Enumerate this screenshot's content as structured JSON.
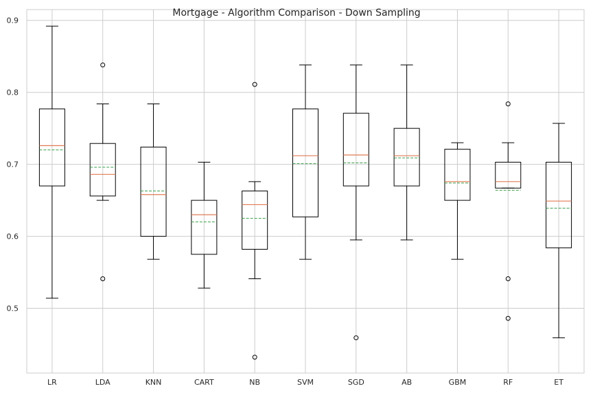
{
  "chart_data": {
    "type": "box",
    "title": "Mortgage - Algorithm Comparison - Down Sampling",
    "xlabel": "",
    "ylabel": "",
    "ylim": [
      0.41,
      0.915
    ],
    "yticks": [
      0.5,
      0.6,
      0.7,
      0.8,
      0.9
    ],
    "ytick_labels": [
      "0.5",
      "0.6",
      "0.7",
      "0.8",
      "0.9"
    ],
    "grid": true,
    "categories": [
      "LR",
      "LDA",
      "KNN",
      "CART",
      "NB",
      "SVM",
      "SGD",
      "AB",
      "GBM",
      "RF",
      "ET"
    ],
    "boxes": [
      {
        "label": "LR",
        "whislo": 0.514,
        "q1": 0.67,
        "med": 0.726,
        "mean": 0.72,
        "q3": 0.777,
        "whishi": 0.892,
        "fliers": []
      },
      {
        "label": "LDA",
        "whislo": 0.65,
        "q1": 0.656,
        "med": 0.686,
        "mean": 0.696,
        "q3": 0.729,
        "whishi": 0.784,
        "fliers": [
          0.838,
          0.541
        ]
      },
      {
        "label": "KNN",
        "whislo": 0.568,
        "q1": 0.6,
        "med": 0.658,
        "mean": 0.663,
        "q3": 0.724,
        "whishi": 0.784,
        "fliers": []
      },
      {
        "label": "CART",
        "whislo": 0.528,
        "q1": 0.575,
        "med": 0.63,
        "mean": 0.62,
        "q3": 0.65,
        "whishi": 0.703,
        "fliers": []
      },
      {
        "label": "NB",
        "whislo": 0.541,
        "q1": 0.582,
        "med": 0.644,
        "mean": 0.625,
        "q3": 0.663,
        "whishi": 0.676,
        "fliers": [
          0.811,
          0.432
        ]
      },
      {
        "label": "SVM",
        "whislo": 0.568,
        "q1": 0.627,
        "med": 0.712,
        "mean": 0.701,
        "q3": 0.777,
        "whishi": 0.838,
        "fliers": []
      },
      {
        "label": "SGD",
        "whislo": 0.595,
        "q1": 0.67,
        "med": 0.713,
        "mean": 0.702,
        "q3": 0.771,
        "whishi": 0.838,
        "fliers": [
          0.459
        ]
      },
      {
        "label": "AB",
        "whislo": 0.595,
        "q1": 0.67,
        "med": 0.712,
        "mean": 0.709,
        "q3": 0.75,
        "whishi": 0.838,
        "fliers": []
      },
      {
        "label": "GBM",
        "whislo": 0.568,
        "q1": 0.65,
        "med": 0.676,
        "mean": 0.674,
        "q3": 0.721,
        "whishi": 0.73,
        "fliers": []
      },
      {
        "label": "RF",
        "whislo": 0.667,
        "q1": 0.667,
        "med": 0.676,
        "mean": 0.664,
        "q3": 0.703,
        "whishi": 0.73,
        "fliers": [
          0.784,
          0.541,
          0.486
        ]
      },
      {
        "label": "ET",
        "whislo": 0.459,
        "q1": 0.584,
        "med": 0.649,
        "mean": 0.639,
        "q3": 0.703,
        "whishi": 0.757,
        "fliers": []
      }
    ],
    "colors": {
      "box": "#000000",
      "median": "#e07b54",
      "mean": "#3a9e4a",
      "grid": "#cccccc"
    }
  }
}
